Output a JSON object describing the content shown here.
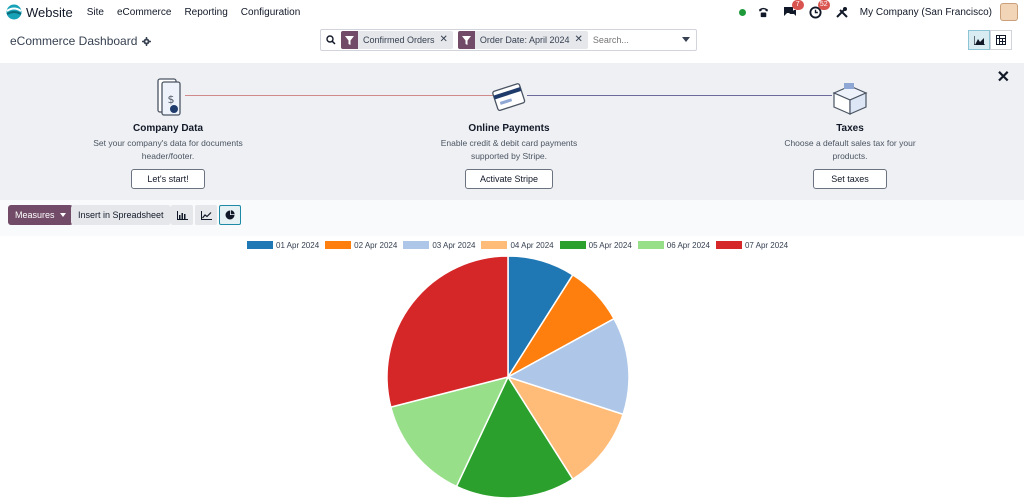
{
  "topbar": {
    "app_name": "Website",
    "menu": [
      "Site",
      "eCommerce",
      "Reporting",
      "Configuration"
    ],
    "messages_badge": "7",
    "activity_badge": "52",
    "company": "My Company (San Francisco)"
  },
  "controlbar": {
    "title": "eCommerce Dashboard",
    "facets": [
      "Confirmed Orders",
      "Order Date: April 2024"
    ],
    "search_placeholder": "Search..."
  },
  "onboarding": {
    "steps": [
      {
        "title": "Company Data",
        "desc1": "Set your company's data for documents",
        "desc2": "header/footer.",
        "button": "Let's start!"
      },
      {
        "title": "Online Payments",
        "desc1": "Enable credit & debit card payments",
        "desc2": "supported by Stripe.",
        "button": "Activate Stripe"
      },
      {
        "title": "Taxes",
        "desc1": "Choose a default sales tax for your",
        "desc2": "products.",
        "button": "Set taxes"
      }
    ]
  },
  "toolbar": {
    "measures_label": "Measures",
    "spreadsheet_label": "Insert in Spreadsheet"
  },
  "colors": {
    "brand": "#714b67",
    "active_view": "#1e8aa6"
  },
  "chart_data": {
    "type": "pie",
    "categories": [
      "01 Apr 2024",
      "02 Apr 2024",
      "03 Apr 2024",
      "04 Apr 2024",
      "05 Apr 2024",
      "06 Apr 2024",
      "07 Apr 2024"
    ],
    "values": [
      9,
      8,
      13,
      11,
      16,
      14,
      29
    ],
    "colors": [
      "#1f77b4",
      "#ff7f0e",
      "#aec7e8",
      "#ffbb78",
      "#2ca02c",
      "#98df8a",
      "#d62728"
    ],
    "legend": "top"
  }
}
